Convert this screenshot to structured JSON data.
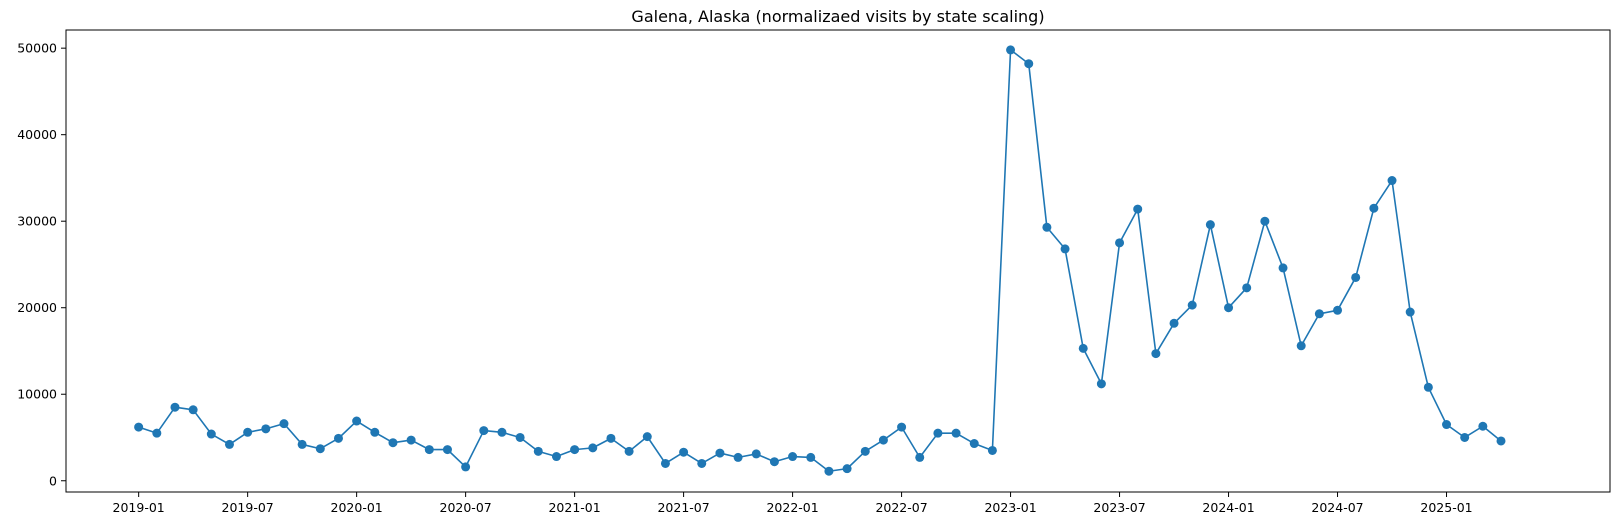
{
  "chart_data": {
    "type": "line",
    "title": "Galena, Alaska (normalizaed visits by state scaling)",
    "xlabel": "",
    "ylabel": "",
    "x_ticks": [
      "2019-01",
      "2019-07",
      "2020-01",
      "2020-07",
      "2021-01",
      "2021-07",
      "2022-01",
      "2022-07",
      "2023-01",
      "2023-07",
      "2024-01",
      "2024-07",
      "2025-01"
    ],
    "y_ticks": [
      0,
      10000,
      20000,
      30000,
      40000,
      50000
    ],
    "xlim": [
      "2018-09",
      "2025-10"
    ],
    "ylim": [
      -1300,
      52100
    ],
    "grid": false,
    "marker": "circle",
    "color": "#1f77b4",
    "x": [
      "2019-01",
      "2019-02",
      "2019-03",
      "2019-04",
      "2019-05",
      "2019-06",
      "2019-07",
      "2019-08",
      "2019-09",
      "2019-10",
      "2019-11",
      "2019-12",
      "2020-01",
      "2020-02",
      "2020-03",
      "2020-04",
      "2020-05",
      "2020-06",
      "2020-07",
      "2020-08",
      "2020-09",
      "2020-10",
      "2020-11",
      "2020-12",
      "2021-01",
      "2021-02",
      "2021-03",
      "2021-04",
      "2021-05",
      "2021-06",
      "2021-07",
      "2021-08",
      "2021-09",
      "2021-10",
      "2021-11",
      "2021-12",
      "2022-01",
      "2022-02",
      "2022-03",
      "2022-04",
      "2022-05",
      "2022-06",
      "2022-07",
      "2022-08",
      "2022-09",
      "2022-10",
      "2022-11",
      "2022-12",
      "2023-01",
      "2023-02",
      "2023-03",
      "2023-04",
      "2023-05",
      "2023-06",
      "2023-07",
      "2023-08",
      "2023-09",
      "2023-10",
      "2023-11",
      "2023-12",
      "2024-01",
      "2024-02",
      "2024-03",
      "2024-04",
      "2024-05",
      "2024-06",
      "2024-07",
      "2024-08",
      "2024-09",
      "2024-10",
      "2024-11",
      "2024-12",
      "2025-01",
      "2025-02",
      "2025-03",
      "2025-04"
    ],
    "series": [
      {
        "values": [
          6200,
          5500,
          8500,
          8200,
          5400,
          4200,
          5600,
          6000,
          6600,
          4200,
          3700,
          4900,
          6900,
          5600,
          4400,
          4700,
          3600,
          3600,
          1600,
          5800,
          5600,
          5000,
          3400,
          2800,
          3600,
          3800,
          4900,
          3400,
          5100,
          2000,
          3300,
          2000,
          3200,
          2700,
          3100,
          2200,
          2800,
          2700,
          1100,
          1400,
          3400,
          4700,
          6200,
          2700,
          5500,
          5500,
          4300,
          3500,
          49800,
          48200,
          29300,
          26800,
          15300,
          11200,
          27500,
          31400,
          14700,
          18200,
          20300,
          29600,
          20000,
          22300,
          30000,
          24600,
          15600,
          19300,
          19700,
          23500,
          31500,
          34700,
          19500,
          10800,
          6500,
          5000,
          6300,
          4600
        ]
      }
    ]
  }
}
